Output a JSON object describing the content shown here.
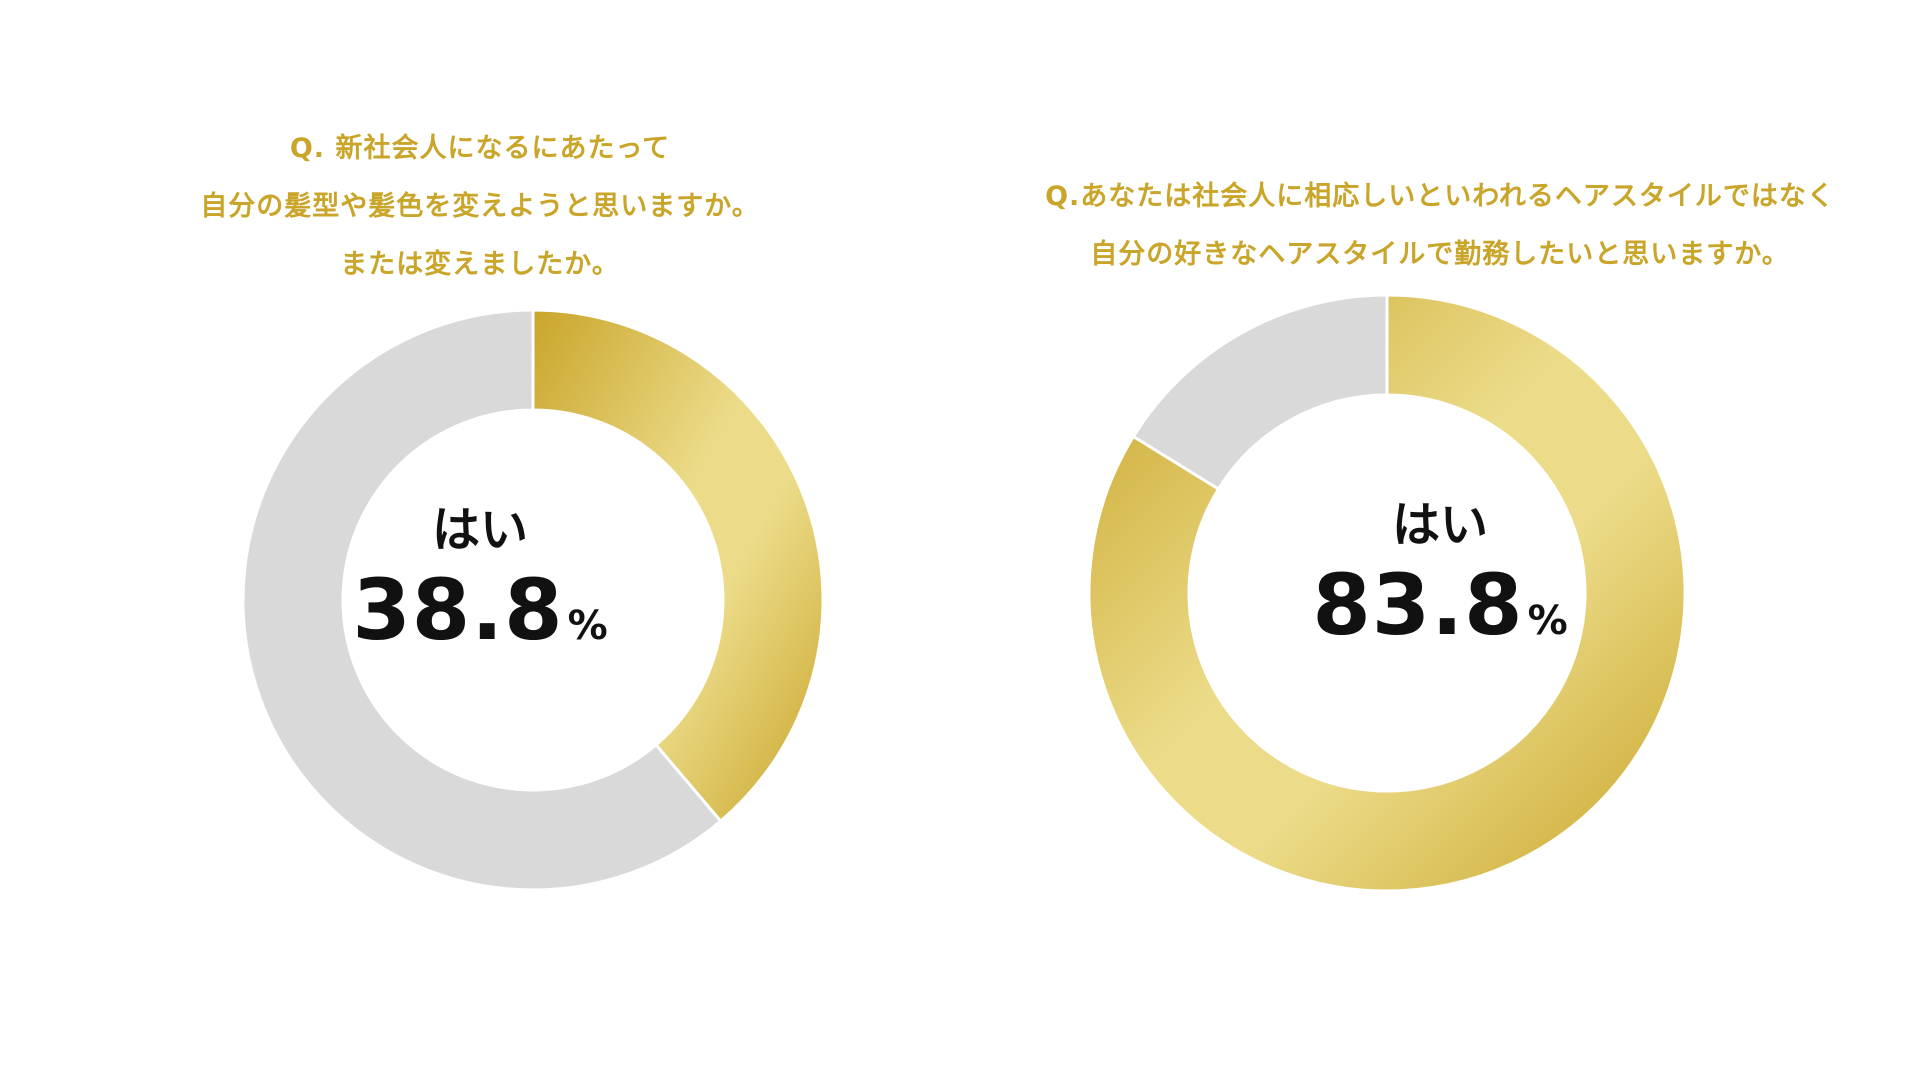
{
  "colors": {
    "yes_gradient_light": "#ecdc8a",
    "yes_gradient_dark": "#c9a52a",
    "no_fill": "#d9d9d9",
    "question_text": "#c9a52a",
    "center_text": "#111111",
    "separator": "#ffffff"
  },
  "chart_data": [
    {
      "type": "pie",
      "donut": true,
      "question_lines": [
        "Q. 新社会人になるにあたって",
        "自分の髪型や髪色を変えようと思いますか。",
        "または変えましたか。"
      ],
      "center_label": "はい",
      "center_value": "38.8",
      "center_unit": "%",
      "slices": [
        {
          "value": 38.8,
          "color": "yes"
        },
        {
          "value": 61.2,
          "color": "no"
        }
      ],
      "legend": "none"
    },
    {
      "type": "pie",
      "donut": true,
      "question_lines": [
        "Q.あなたは社会人に相応しいといわれるヘアスタイルではなく",
        "自分の好きなヘアスタイルで勤務したいと思いますか。"
      ],
      "center_label": "はい",
      "center_value": "83.8",
      "center_unit": "%",
      "slices": [
        {
          "value": 83.8,
          "color": "yes"
        },
        {
          "value": 16.2,
          "color": "no"
        }
      ],
      "legend": "none"
    }
  ]
}
